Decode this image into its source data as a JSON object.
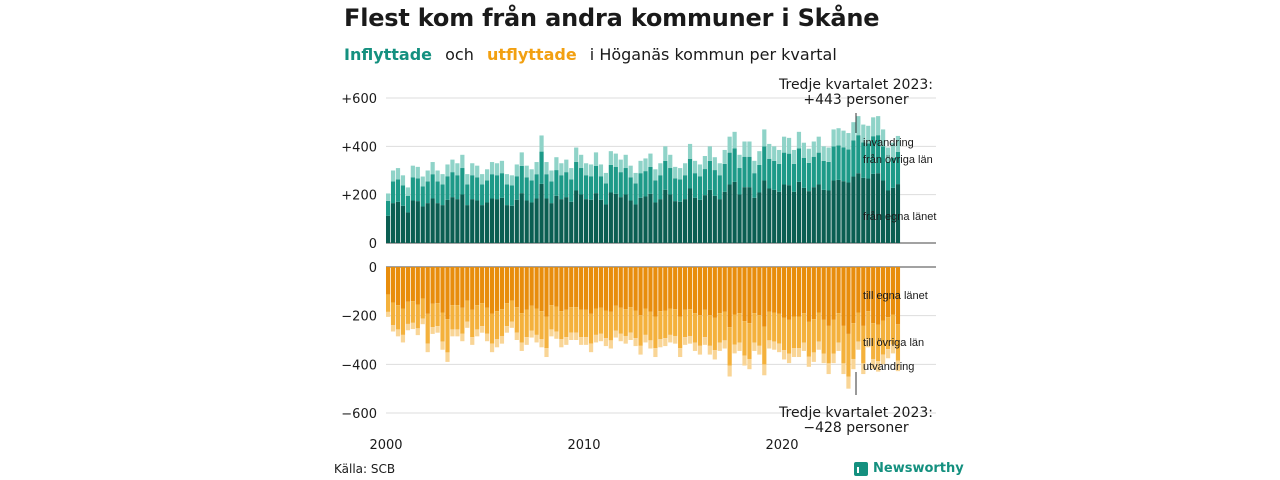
{
  "title": "Flest kom från andra kommuner i Skåne",
  "subtitle": {
    "in_label": "Inflyttade",
    "and": "och",
    "out_label": "utflyttade",
    "rest": "i Höganäs kommun per kvartal"
  },
  "source": "Källa: SCB",
  "brand": "Newsworthy",
  "colors": {
    "in_own": "#0b5e52",
    "in_other": "#1d9a88",
    "in_emig": "#8fd3c8",
    "out_own": "#e88d0c",
    "out_other": "#f4b13c",
    "out_emig": "#f9d596"
  },
  "chart_data": {
    "type": "bar",
    "stacked": true,
    "x_label_ticks": [
      "2000",
      "2010",
      "2020"
    ],
    "y_ticks_top": [
      "+600",
      "+400",
      "+200",
      "0"
    ],
    "y_ticks_bottom": [
      "0",
      "−200",
      "−400",
      "−600"
    ],
    "ylim_top": [
      0,
      600
    ],
    "ylim_bottom": [
      -600,
      0
    ],
    "start_year": 2000,
    "period": "quarter",
    "annotations": {
      "in_series": [
        "invandring",
        "från övriga län",
        "från egna länet"
      ],
      "out_series": [
        "till egna länet",
        "till övriga län",
        "utvandring"
      ],
      "callout_top": [
        "Tredje kvartalet 2023:",
        "+443 personer"
      ],
      "callout_bottom": [
        "Tredje kvartalet 2023:",
        "−428 personer"
      ]
    },
    "series_in_totals": [
      205,
      300,
      310,
      280,
      230,
      320,
      315,
      275,
      300,
      335,
      300,
      285,
      325,
      345,
      330,
      365,
      285,
      330,
      320,
      285,
      305,
      335,
      330,
      340,
      285,
      280,
      325,
      375,
      320,
      305,
      335,
      445,
      335,
      300,
      355,
      330,
      345,
      310,
      395,
      365,
      330,
      325,
      375,
      325,
      290,
      380,
      370,
      345,
      365,
      320,
      290,
      340,
      350,
      370,
      305,
      330,
      400,
      365,
      315,
      310,
      330,
      410,
      340,
      325,
      360,
      400,
      355,
      330,
      385,
      440,
      460,
      365,
      420,
      420,
      340,
      380,
      470,
      410,
      400,
      385,
      440,
      435,
      385,
      460,
      415,
      390,
      420,
      440,
      400,
      395,
      470,
      475,
      465,
      455,
      500,
      525,
      490,
      485,
      520,
      525,
      470,
      395,
      415,
      443
    ],
    "series_out_totals": [
      -205,
      -265,
      -285,
      -310,
      -260,
      -255,
      -280,
      -235,
      -350,
      -275,
      -270,
      -340,
      -390,
      -285,
      -285,
      -305,
      -250,
      -320,
      -285,
      -270,
      -305,
      -350,
      -330,
      -315,
      -270,
      -250,
      -300,
      -345,
      -320,
      -290,
      -310,
      -330,
      -370,
      -285,
      -295,
      -330,
      -320,
      -300,
      -300,
      -320,
      -320,
      -350,
      -310,
      -305,
      -325,
      -335,
      -290,
      -305,
      -315,
      -300,
      -325,
      -360,
      -310,
      -335,
      -370,
      -330,
      -325,
      -310,
      -315,
      -370,
      -320,
      -315,
      -345,
      -360,
      -320,
      -360,
      -380,
      -345,
      -335,
      -450,
      -355,
      -345,
      -405,
      -420,
      -345,
      -360,
      -445,
      -335,
      -340,
      -350,
      -380,
      -395,
      -370,
      -370,
      -345,
      -410,
      -390,
      -340,
      -395,
      -440,
      -395,
      -345,
      -440,
      -500,
      -420,
      -340,
      -440,
      -330,
      -420,
      -430,
      -400,
      -375,
      -355,
      -428
    ]
  }
}
